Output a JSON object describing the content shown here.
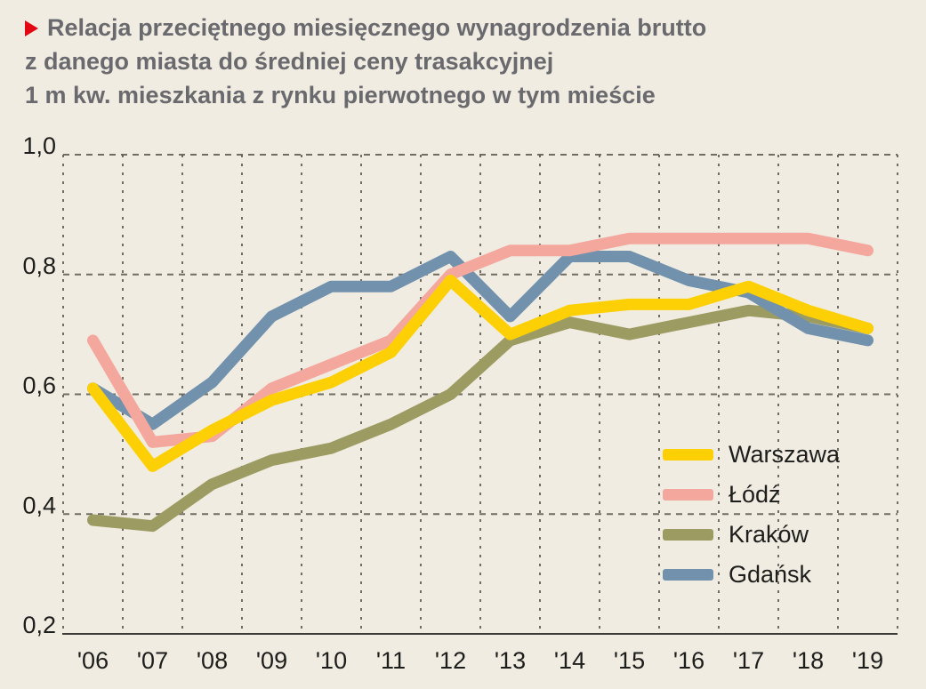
{
  "title": {
    "line1": "Relacja przeciętnego miesięcznego wynagrodzenia brutto",
    "line2": "z danego miasta do średniej ceny trasakcyjnej",
    "line3": "1 m kw. mieszkania z rynku pierwotnego w tym mieście"
  },
  "colors": {
    "background": "#f0ece2",
    "title_text": "#6a6a6e",
    "bullet_red": "#e30613",
    "axis_text": "#1d1d1b",
    "grid": "#5a574e",
    "axis_line": "#3c3a35"
  },
  "chart_data": {
    "type": "line",
    "title": "Relacja przeciętnego miesięcznego wynagrodzenia brutto z danego miasta do średniej ceny trasakcyjnej 1 m kw. mieszkania z rynku pierwotnego w tym mieście",
    "xlabel": "",
    "ylabel": "",
    "ylim": [
      0.2,
      1.0
    ],
    "grid": true,
    "legend_position": "inside-right",
    "x_labels": [
      "'06",
      "'07",
      "'08",
      "'09",
      "'10",
      "'11",
      "'12",
      "'13",
      "'14",
      "'15",
      "'16",
      "'17",
      "'18",
      "'19"
    ],
    "y_tick_labels": [
      "1,0",
      "0,8",
      "0,6",
      "0,4",
      "0,2"
    ],
    "y_tick_values": [
      1.0,
      0.8,
      0.6,
      0.4,
      0.2
    ],
    "series": [
      {
        "name": "Warszawa",
        "color": "#fcd005",
        "values": [
          0.61,
          0.48,
          0.54,
          0.59,
          0.62,
          0.67,
          0.79,
          0.7,
          0.74,
          0.75,
          0.75,
          0.78,
          0.74,
          0.71
        ]
      },
      {
        "name": "Łódź",
        "color": "#f4a79d",
        "values": [
          0.69,
          0.52,
          0.53,
          0.61,
          0.65,
          0.69,
          0.8,
          0.84,
          0.84,
          0.86,
          0.86,
          0.86,
          0.86,
          0.84
        ]
      },
      {
        "name": "Kraków",
        "color": "#9c9b62",
        "values": [
          0.39,
          0.38,
          0.45,
          0.49,
          0.51,
          0.55,
          0.6,
          0.69,
          0.72,
          0.7,
          0.72,
          0.74,
          0.73,
          0.71
        ]
      },
      {
        "name": "Gdańsk",
        "color": "#7191ad",
        "values": [
          0.61,
          0.55,
          0.62,
          0.73,
          0.78,
          0.78,
          0.83,
          0.73,
          0.83,
          0.83,
          0.79,
          0.77,
          0.71,
          0.69
        ]
      }
    ],
    "draw_order": [
      2,
      3,
      1,
      0
    ]
  }
}
